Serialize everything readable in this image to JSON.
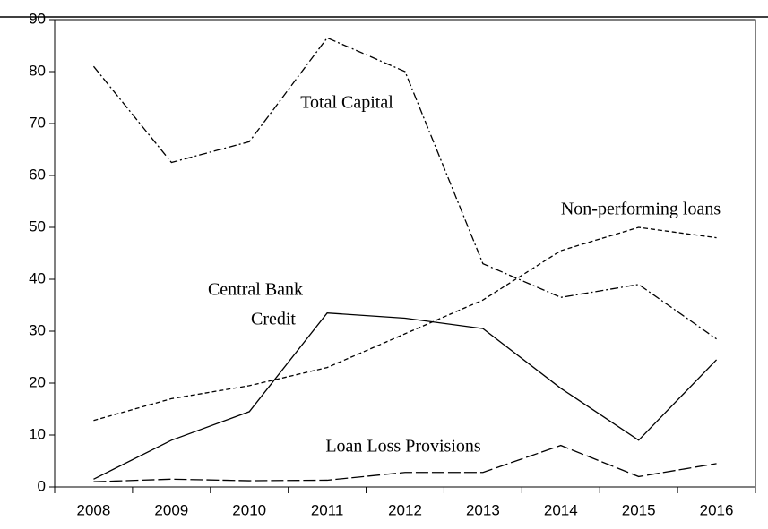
{
  "chart_data": {
    "type": "line",
    "categories": [
      "2008",
      "2009",
      "2010",
      "2011",
      "2012",
      "2013",
      "2014",
      "2015",
      "2016"
    ],
    "series": [
      {
        "label": [
          "Total Capital"
        ],
        "color": "#000000",
        "dash": "9,3,2,3",
        "values": [
          81,
          62.5,
          66.5,
          86.5,
          80,
          43,
          36.5,
          39,
          28.5
        ]
      },
      {
        "label": [
          "Non-performing loans"
        ],
        "color": "#000000",
        "dash": "5,3",
        "values": [
          12.8,
          17,
          19.5,
          23,
          29.5,
          36,
          45.5,
          50,
          48
        ]
      },
      {
        "label": [
          "Central Bank",
          "Credit"
        ],
        "color": "#000000",
        "dash": "none",
        "values": [
          1.5,
          9,
          14.5,
          33.5,
          32.5,
          30.5,
          19,
          9,
          24.5
        ]
      },
      {
        "label": [
          "Loan Loss Provisions"
        ],
        "color": "#000000",
        "dash": "14,4",
        "values": [
          1,
          1.5,
          1.2,
          1.3,
          2.8,
          2.8,
          8,
          2,
          4.5
        ]
      }
    ],
    "ylim": [
      0,
      90
    ],
    "yticks": [
      0,
      10,
      20,
      30,
      40,
      50,
      60,
      70,
      80,
      90
    ],
    "grid": false
  }
}
